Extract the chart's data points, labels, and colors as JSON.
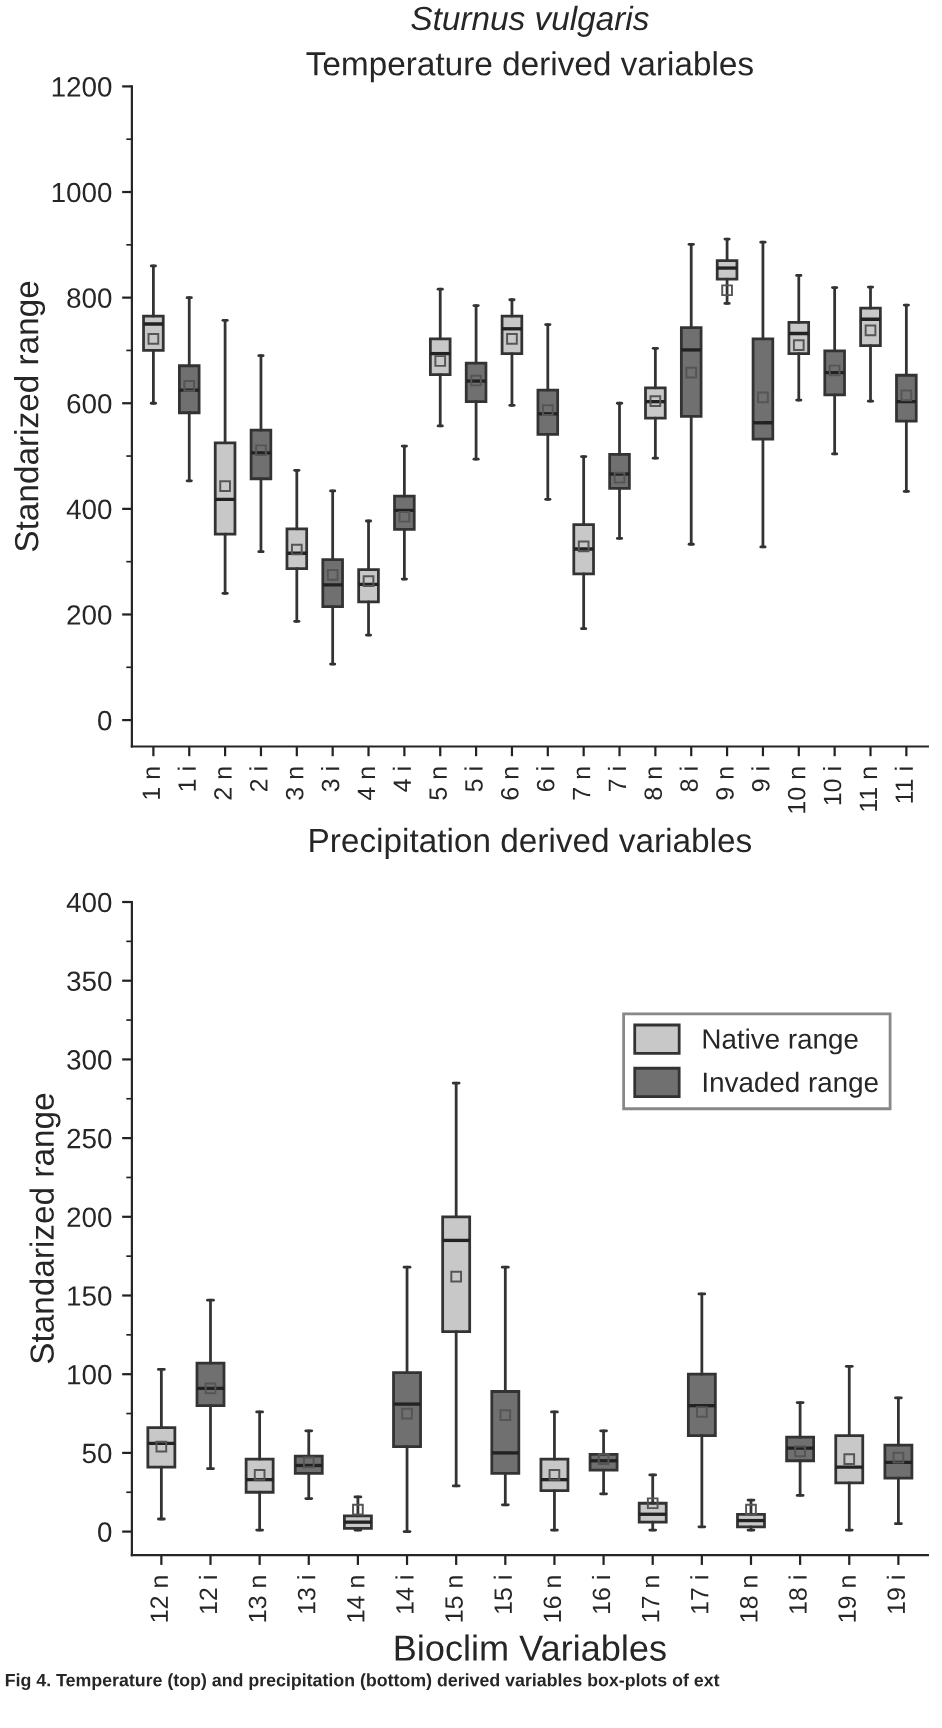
{
  "chart_data": [
    {
      "type": "box",
      "title": "Temperature derived variables",
      "subtitle": "Sturnus vulgaris",
      "ylabel": "Standarized range",
      "categories": [
        "1 n",
        "1 i",
        "2 n",
        "2 i",
        "3 n",
        "3 i",
        "4 n",
        "4 i",
        "5 n",
        "5 i",
        "6 n",
        "6 i",
        "7 n",
        "7 i",
        "8 n",
        "8 i",
        "9 n",
        "9 i",
        "10 n",
        "10 i",
        "11 n",
        "11 i"
      ],
      "ylim": [
        -50,
        1200
      ],
      "yticks": [
        0,
        200,
        400,
        600,
        800,
        1000,
        1200
      ],
      "grid": false,
      "legend": false,
      "series": [
        {
          "color": "#c8c8c8",
          "boxes": [
            {
              "low": 600,
              "q1": 700,
              "median": 750,
              "q3": 765,
              "high": 860,
              "mean": 722
            },
            null,
            {
              "low": 240,
              "q1": 352,
              "median": 418,
              "q3": 525,
              "high": 757,
              "mean": 443
            },
            null,
            {
              "low": 187,
              "q1": 287,
              "median": 316,
              "q3": 362,
              "high": 473,
              "mean": 323
            },
            null,
            {
              "low": 161,
              "q1": 224,
              "median": 257,
              "q3": 285,
              "high": 377,
              "mean": 263
            },
            null,
            {
              "low": 557,
              "q1": 654,
              "median": 694,
              "q3": 722,
              "high": 816,
              "mean": 680
            },
            null,
            {
              "low": 596,
              "q1": 694,
              "median": 741,
              "q3": 765,
              "high": 796,
              "mean": 722
            },
            null,
            {
              "low": 173,
              "q1": 277,
              "median": 324,
              "q3": 370,
              "high": 499,
              "mean": 329
            },
            null,
            {
              "low": 496,
              "q1": 572,
              "median": 603,
              "q3": 629,
              "high": 704,
              "mean": 604
            },
            null,
            {
              "low": 789,
              "q1": 835,
              "median": 856,
              "q3": 870,
              "high": 911,
              "mean": 814
            },
            null,
            {
              "low": 606,
              "q1": 694,
              "median": 732,
              "q3": 753,
              "high": 842,
              "mean": 710
            },
            null,
            {
              "low": 604,
              "q1": 709,
              "median": 759,
              "q3": 780,
              "high": 820,
              "mean": 738
            },
            null
          ]
        },
        {
          "color": "#707070",
          "boxes": [
            null,
            {
              "low": 453,
              "q1": 582,
              "median": 625,
              "q3": 671,
              "high": 800,
              "mean": 633
            },
            null,
            {
              "low": 319,
              "q1": 457,
              "median": 506,
              "q3": 549,
              "high": 690,
              "mean": 511
            },
            null,
            {
              "low": 106,
              "q1": 215,
              "median": 256,
              "q3": 304,
              "high": 434,
              "mean": 275
            },
            null,
            {
              "low": 267,
              "q1": 361,
              "median": 397,
              "q3": 424,
              "high": 519,
              "mean": 385
            },
            null,
            {
              "low": 494,
              "q1": 603,
              "median": 642,
              "q3": 676,
              "high": 785,
              "mean": 643
            },
            null,
            {
              "low": 418,
              "q1": 541,
              "median": 580,
              "q3": 625,
              "high": 749,
              "mean": 587
            },
            null,
            {
              "low": 344,
              "q1": 439,
              "median": 466,
              "q3": 503,
              "high": 600,
              "mean": 459
            },
            null,
            {
              "low": 333,
              "q1": 575,
              "median": 701,
              "q3": 743,
              "high": 901,
              "mean": 658
            },
            null,
            {
              "low": 328,
              "q1": 532,
              "median": 563,
              "q3": 722,
              "high": 905,
              "mean": 611
            },
            null,
            {
              "low": 504,
              "q1": 616,
              "median": 658,
              "q3": 699,
              "high": 819,
              "mean": 662
            },
            null,
            {
              "low": 433,
              "q1": 566,
              "median": 603,
              "q3": 653,
              "high": 786,
              "mean": 615
            }
          ]
        }
      ]
    },
    {
      "type": "box",
      "title": "Precipitation derived variables",
      "xlabel": "Bioclim Variables",
      "ylabel": "Standarized range",
      "categories": [
        "12 n",
        "12 i",
        "13 n",
        "13 i",
        "14 n",
        "14 i",
        "15 n",
        "15 i",
        "16 n",
        "16 i",
        "17 n",
        "17 i",
        "18 n",
        "18 i",
        "19 n",
        "19 i"
      ],
      "ylim": [
        -15,
        400
      ],
      "yticks": [
        0,
        50,
        100,
        150,
        200,
        250,
        300,
        350,
        400
      ],
      "grid": false,
      "legend": "top right",
      "annotations": [
        "Fig 4. Temperature (top) and precipitation (bottom) derived variables box-plots of ext"
      ],
      "series": [
        {
          "name": "Native range",
          "color": "#c8c8c8",
          "boxes": [
            {
              "low": 8,
              "q1": 41,
              "median": 56,
              "q3": 66,
              "high": 103,
              "mean": 54
            },
            null,
            {
              "low": 1,
              "q1": 25,
              "median": 33,
              "q3": 46,
              "high": 76,
              "mean": 36
            },
            null,
            {
              "low": 1,
              "q1": 2,
              "median": 6,
              "q3": 10,
              "high": 22,
              "mean": 14
            },
            null,
            {
              "low": 29,
              "q1": 127,
              "median": 185,
              "q3": 200,
              "high": 285,
              "mean": 162
            },
            null,
            {
              "low": 1,
              "q1": 26,
              "median": 33,
              "q3": 46,
              "high": 76,
              "mean": 36
            },
            null,
            {
              "low": 1,
              "q1": 6,
              "median": 11,
              "q3": 18,
              "high": 36,
              "mean": 18
            },
            null,
            {
              "low": 1,
              "q1": 3,
              "median": 7,
              "q3": 11,
              "high": 20,
              "mean": 14
            },
            null,
            {
              "low": 1,
              "q1": 31,
              "median": 41,
              "q3": 61,
              "high": 105,
              "mean": 46
            },
            null
          ]
        },
        {
          "name": "Invaded range",
          "color": "#707070",
          "boxes": [
            null,
            {
              "low": 40,
              "q1": 80,
              "median": 91,
              "q3": 107,
              "high": 147,
              "mean": 91
            },
            null,
            {
              "low": 21,
              "q1": 37,
              "median": 42,
              "q3": 48,
              "high": 64,
              "mean": 44
            },
            null,
            {
              "low": 0,
              "q1": 54,
              "median": 81,
              "q3": 101,
              "high": 168,
              "mean": 75
            },
            null,
            {
              "low": 17,
              "q1": 37,
              "median": 50,
              "q3": 89,
              "high": 168,
              "mean": 74
            },
            null,
            {
              "low": 24,
              "q1": 39,
              "median": 45,
              "q3": 49,
              "high": 64,
              "mean": 46
            },
            null,
            {
              "low": 3,
              "q1": 61,
              "median": 80,
              "q3": 100,
              "high": 151,
              "mean": 76
            },
            null,
            {
              "low": 23,
              "q1": 45,
              "median": 53,
              "q3": 60,
              "high": 82,
              "mean": 51
            },
            null,
            {
              "low": 5,
              "q1": 34,
              "median": 44,
              "q3": 55,
              "high": 85,
              "mean": 47
            }
          ]
        }
      ]
    }
  ]
}
